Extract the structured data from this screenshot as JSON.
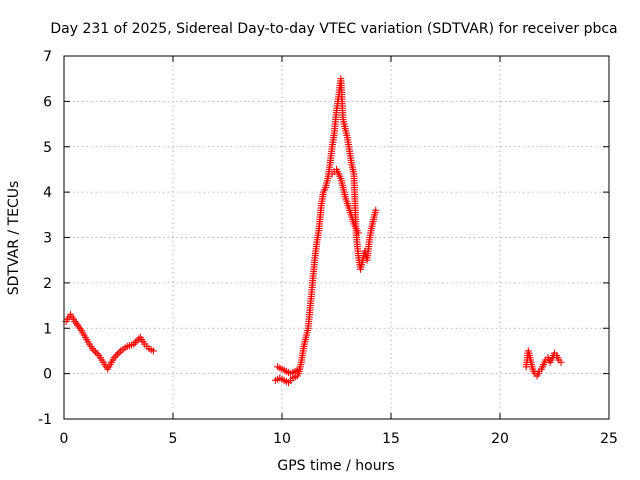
{
  "chart_data": {
    "type": "scatter",
    "title": "Day 231 of 2025, Sidereal Day-to-day VTEC variation (SDTVAR) for receiver pbca",
    "xlabel": "GPS time / hours",
    "ylabel": "SDTVAR / TECUs",
    "xlim": [
      0,
      25
    ],
    "ylim": [
      -1,
      7
    ],
    "xticks": [
      0,
      5,
      10,
      15,
      20,
      25
    ],
    "yticks": [
      -1,
      0,
      1,
      2,
      3,
      4,
      5,
      6,
      7
    ],
    "grid": true,
    "marker": "plus",
    "color": "#ff0000",
    "series": [
      {
        "name": "segment-1",
        "x": [
          0.1,
          0.3,
          0.5,
          0.8,
          1.1,
          1.3,
          1.6,
          1.8,
          2.0,
          2.3,
          2.6,
          2.9,
          3.2,
          3.5,
          3.7,
          3.9,
          4.1
        ],
        "y": [
          1.15,
          1.3,
          1.15,
          0.95,
          0.7,
          0.55,
          0.4,
          0.25,
          0.1,
          0.35,
          0.5,
          0.6,
          0.65,
          0.8,
          0.65,
          0.55,
          0.5
        ]
      },
      {
        "name": "segment-2",
        "x": [
          9.7,
          9.9,
          10.1,
          10.3,
          10.5,
          10.7,
          10.8,
          10.9,
          11.0,
          11.1,
          11.2,
          11.3,
          11.4,
          11.5,
          11.6,
          11.7,
          11.8,
          11.9,
          12.0,
          12.1,
          12.2,
          12.3,
          12.4,
          12.5,
          12.6,
          12.7,
          12.8,
          12.9,
          13.0,
          13.1,
          13.2,
          13.3,
          13.4,
          13.5,
          13.6,
          13.7,
          13.8,
          13.9,
          14.0,
          14.1,
          14.2,
          14.3
        ],
        "y": [
          -0.15,
          -0.1,
          -0.15,
          -0.2,
          -0.1,
          -0.05,
          0.05,
          0.3,
          0.6,
          0.8,
          1.0,
          1.5,
          2.0,
          2.5,
          2.9,
          3.2,
          3.7,
          4.0,
          4.1,
          4.3,
          4.6,
          5.0,
          5.3,
          5.8,
          6.1,
          6.5,
          5.6,
          5.4,
          5.2,
          4.9,
          4.6,
          4.4,
          3.1,
          2.6,
          2.3,
          2.5,
          2.7,
          2.5,
          2.9,
          3.2,
          3.4,
          3.6
        ]
      },
      {
        "name": "segment-3",
        "x": [
          9.8,
          10.0,
          10.2,
          10.4,
          10.6,
          10.8
        ],
        "y": [
          0.15,
          0.1,
          0.05,
          0.0,
          0.05,
          0.1
        ]
      },
      {
        "name": "segment-4",
        "x": [
          12.3,
          12.5,
          12.7,
          12.9,
          13.1,
          13.3,
          13.5
        ],
        "y": [
          4.4,
          4.5,
          4.3,
          3.9,
          3.6,
          3.3,
          3.1
        ]
      },
      {
        "name": "segment-5",
        "x": [
          21.2,
          21.3,
          21.4,
          21.5,
          21.6,
          21.7,
          21.8,
          21.9,
          22.0,
          22.1,
          22.2,
          22.3,
          22.4,
          22.5,
          22.6,
          22.7,
          22.8
        ],
        "y": [
          0.15,
          0.5,
          0.3,
          0.1,
          0.0,
          -0.05,
          0.05,
          0.1,
          0.2,
          0.3,
          0.35,
          0.25,
          0.35,
          0.45,
          0.4,
          0.3,
          0.25
        ]
      }
    ]
  }
}
